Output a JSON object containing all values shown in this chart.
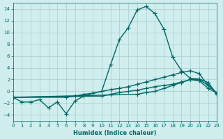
{
  "title": "",
  "xlabel": "Humidex (Indice chaleur)",
  "ylabel": "",
  "bg_color": "#d0eeee",
  "grid_color": "#aacccc",
  "line_color": "#006666",
  "xlim": [
    0,
    23
  ],
  "ylim": [
    -5,
    15
  ],
  "yticks": [
    -4,
    -2,
    0,
    2,
    4,
    6,
    8,
    10,
    12,
    14
  ],
  "xticks": [
    0,
    1,
    2,
    3,
    4,
    5,
    6,
    7,
    8,
    9,
    10,
    11,
    12,
    13,
    14,
    15,
    16,
    17,
    18,
    19,
    20,
    21,
    22,
    23
  ],
  "curve1_x": [
    0,
    1,
    2,
    3,
    4,
    5,
    6,
    7,
    8,
    9,
    10,
    11,
    12,
    13,
    14,
    15,
    16,
    17,
    18,
    19,
    20,
    21,
    22,
    23
  ],
  "curve1_y": [
    -1.0,
    -1.8,
    -1.8,
    -1.4,
    -2.8,
    -1.8,
    -3.8,
    -1.6,
    -0.8,
    -0.3,
    0.0,
    4.5,
    8.8,
    10.8,
    13.8,
    14.4,
    13.2,
    10.6,
    5.8,
    3.5,
    2.2,
    2.1,
    1.5,
    -0.5
  ],
  "curve2_x": [
    0,
    6,
    7,
    8,
    9,
    10,
    11,
    12,
    13,
    14,
    15,
    16,
    17,
    18,
    19,
    20,
    21,
    22,
    23
  ],
  "curve2_y": [
    -1.0,
    -1.0,
    -0.8,
    -0.5,
    -0.3,
    0.0,
    0.3,
    0.5,
    0.8,
    1.2,
    1.6,
    2.0,
    2.4,
    2.8,
    3.2,
    3.5,
    3.0,
    1.0,
    -0.3
  ],
  "curve3_x": [
    0,
    10,
    11,
    12,
    13,
    14,
    15,
    16,
    17,
    18,
    19,
    20,
    21,
    22,
    23
  ],
  "curve3_y": [
    -1.0,
    -0.8,
    -0.5,
    -0.2,
    0.0,
    0.2,
    0.5,
    0.8,
    1.0,
    1.2,
    1.6,
    2.0,
    1.8,
    0.5,
    -0.3
  ],
  "curve4_x": [
    0,
    14,
    15,
    16,
    17,
    18,
    19,
    20,
    21,
    22,
    23
  ],
  "curve4_y": [
    -1.0,
    -0.5,
    -0.2,
    0.0,
    0.5,
    1.0,
    1.5,
    2.0,
    2.0,
    1.0,
    -0.3
  ]
}
